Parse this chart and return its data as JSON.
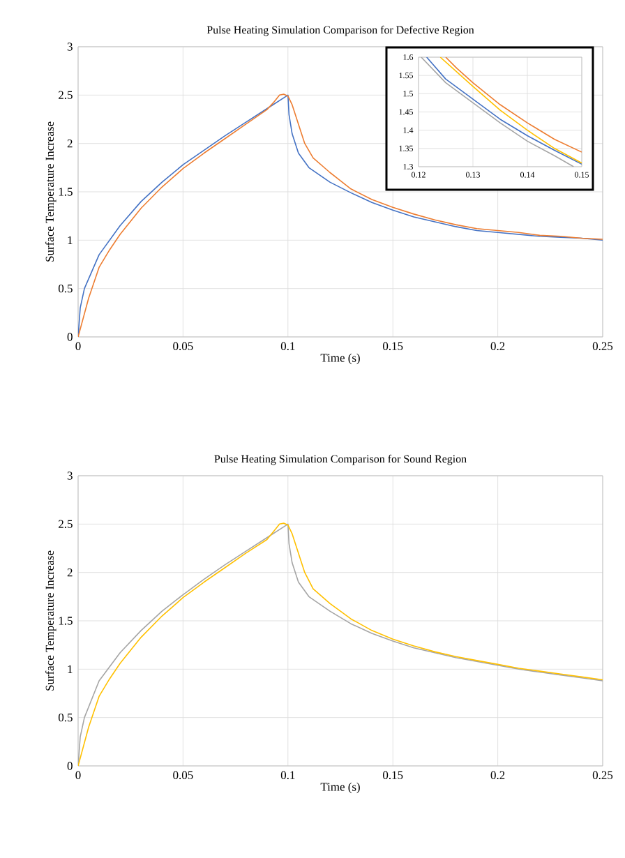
{
  "chart_data": [
    {
      "type": "line",
      "title": "Pulse Heating Simulation Comparison for Defective Region",
      "xlabel": "Time (s)",
      "ylabel": "Surface Temperature Increase",
      "xlim": [
        0,
        0.25
      ],
      "ylim": [
        0,
        3
      ],
      "xticks": [
        0,
        0.05,
        0.1,
        0.15,
        0.2,
        0.25
      ],
      "yticks": [
        0,
        0.5,
        1,
        1.5,
        2,
        2.5,
        3
      ],
      "grid": true,
      "series": [
        {
          "color": "#4472c4",
          "x": [
            0,
            0.001,
            0.003,
            0.01,
            0.02,
            0.03,
            0.04,
            0.05,
            0.06,
            0.07,
            0.08,
            0.09,
            0.1,
            0.1005,
            0.102,
            0.105,
            0.11,
            0.12,
            0.13,
            0.14,
            0.15,
            0.16,
            0.17,
            0.18,
            0.19,
            0.2,
            0.21,
            0.22,
            0.23,
            0.24,
            0.25
          ],
          "values": [
            0,
            0.3,
            0.5,
            0.85,
            1.15,
            1.4,
            1.6,
            1.78,
            1.93,
            2.08,
            2.22,
            2.36,
            2.5,
            2.3,
            2.1,
            1.9,
            1.75,
            1.6,
            1.49,
            1.39,
            1.31,
            1.24,
            1.19,
            1.14,
            1.1,
            1.08,
            1.06,
            1.04,
            1.03,
            1.02,
            1.0
          ]
        },
        {
          "color": "#ed7d31",
          "x": [
            0,
            0.005,
            0.01,
            0.015,
            0.02,
            0.03,
            0.04,
            0.05,
            0.06,
            0.07,
            0.08,
            0.09,
            0.093,
            0.096,
            0.098,
            0.1,
            0.102,
            0.105,
            0.108,
            0.112,
            0.12,
            0.13,
            0.14,
            0.15,
            0.16,
            0.17,
            0.18,
            0.19,
            0.2,
            0.21,
            0.22,
            0.23,
            0.24,
            0.25
          ],
          "values": [
            0,
            0.4,
            0.72,
            0.9,
            1.06,
            1.33,
            1.55,
            1.74,
            1.9,
            2.05,
            2.2,
            2.35,
            2.42,
            2.5,
            2.51,
            2.49,
            2.4,
            2.2,
            2.0,
            1.85,
            1.7,
            1.53,
            1.42,
            1.34,
            1.27,
            1.21,
            1.16,
            1.12,
            1.1,
            1.08,
            1.05,
            1.04,
            1.02,
            1.01
          ]
        }
      ]
    },
    {
      "type": "line",
      "xlim": [
        0.12,
        0.15
      ],
      "ylim": [
        1.3,
        1.6
      ],
      "xticks": [
        0.12,
        0.13,
        0.14,
        0.15
      ],
      "yticks": [
        1.3,
        1.35,
        1.4,
        1.45,
        1.5,
        1.55,
        1.6
      ],
      "grid": true,
      "series": [
        {
          "color": "#a5a5a5",
          "x": [
            0.1205,
            0.125,
            0.13,
            0.135,
            0.14,
            0.145,
            0.1485
          ],
          "values": [
            1.6,
            1.53,
            1.475,
            1.42,
            1.37,
            1.33,
            1.3
          ]
        },
        {
          "color": "#4472c4",
          "x": [
            0.1215,
            0.125,
            0.13,
            0.135,
            0.14,
            0.145,
            0.15
          ],
          "values": [
            1.6,
            1.54,
            1.485,
            1.43,
            1.385,
            1.345,
            1.307
          ]
        },
        {
          "color": "#ffc000",
          "x": [
            0.124,
            0.127,
            0.13,
            0.135,
            0.14,
            0.145,
            0.15
          ],
          "values": [
            1.6,
            1.56,
            1.52,
            1.455,
            1.4,
            1.35,
            1.31
          ]
        },
        {
          "color": "#ed7d31",
          "x": [
            0.125,
            0.127,
            0.13,
            0.135,
            0.14,
            0.145,
            0.15
          ],
          "values": [
            1.6,
            1.57,
            1.53,
            1.47,
            1.42,
            1.375,
            1.34
          ]
        }
      ]
    },
    {
      "type": "line",
      "title": "Pulse Heating Simulation Comparison for Sound Region",
      "xlabel": "Time (s)",
      "ylabel": "Surface Temperature Increase",
      "xlim": [
        0,
        0.25
      ],
      "ylim": [
        0,
        3
      ],
      "xticks": [
        0,
        0.05,
        0.1,
        0.15,
        0.2,
        0.25
      ],
      "yticks": [
        0,
        0.5,
        1,
        1.5,
        2,
        2.5,
        3
      ],
      "grid": true,
      "series": [
        {
          "color": "#a5a5a5",
          "x": [
            0,
            0.001,
            0.003,
            0.01,
            0.02,
            0.03,
            0.04,
            0.05,
            0.06,
            0.07,
            0.08,
            0.09,
            0.1,
            0.1005,
            0.102,
            0.105,
            0.11,
            0.12,
            0.13,
            0.14,
            0.15,
            0.16,
            0.17,
            0.18,
            0.19,
            0.2,
            0.21,
            0.22,
            0.23,
            0.24,
            0.25
          ],
          "values": [
            0,
            0.3,
            0.5,
            0.88,
            1.17,
            1.4,
            1.6,
            1.77,
            1.93,
            2.08,
            2.22,
            2.36,
            2.5,
            2.3,
            2.1,
            1.9,
            1.75,
            1.6,
            1.47,
            1.37,
            1.29,
            1.22,
            1.17,
            1.12,
            1.08,
            1.04,
            1.0,
            0.97,
            0.94,
            0.91,
            0.88
          ]
        },
        {
          "color": "#ffc000",
          "x": [
            0,
            0.005,
            0.01,
            0.015,
            0.02,
            0.03,
            0.04,
            0.05,
            0.06,
            0.07,
            0.08,
            0.09,
            0.093,
            0.096,
            0.098,
            0.1,
            0.102,
            0.105,
            0.108,
            0.112,
            0.12,
            0.13,
            0.14,
            0.15,
            0.16,
            0.17,
            0.18,
            0.19,
            0.2,
            0.21,
            0.22,
            0.23,
            0.24,
            0.25
          ],
          "values": [
            0,
            0.4,
            0.72,
            0.9,
            1.06,
            1.33,
            1.55,
            1.74,
            1.9,
            2.05,
            2.2,
            2.34,
            2.42,
            2.5,
            2.51,
            2.49,
            2.4,
            2.2,
            2.0,
            1.83,
            1.68,
            1.52,
            1.4,
            1.31,
            1.24,
            1.18,
            1.13,
            1.09,
            1.05,
            1.01,
            0.98,
            0.95,
            0.92,
            0.89
          ]
        }
      ]
    }
  ]
}
